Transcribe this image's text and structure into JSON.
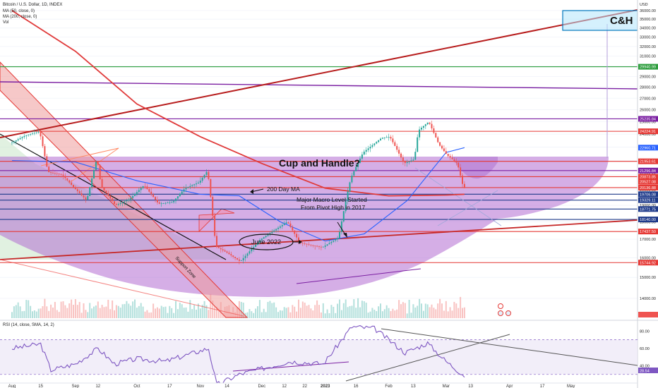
{
  "header": {
    "symbol": "Bitcoin / U.S. Dollar, 1D, INDEX",
    "ma50": "MA (50, close, 0)",
    "ma200": "MA (200, close, 0)",
    "vol": "Vol"
  },
  "rsi_header": "RSI (14, close, SMA, 14, 2)",
  "currency": "USD",
  "annotations": {
    "cup": "Cup and Handle?",
    "ma200": "200 Day MA",
    "macro_1": "Major Macro Level Started",
    "macro_2": "From Pivot High in 2017",
    "june": "June 2022",
    "support": "Support Zone",
    "ch": "C&H"
  },
  "colors": {
    "up": "#26a69a",
    "down": "#ef5350",
    "cup_fill": "#b36bd1",
    "ma200": "#e03a3a",
    "ma50": "#2962ff",
    "purple_line": "#7b1fa2",
    "green_line": "#2e9e3e",
    "blue_line": "#1e3a8a",
    "red_line": "#e53935"
  },
  "chart_data": {
    "type": "candlestick",
    "title": "Bitcoin / U.S. Dollar, 1D, INDEX",
    "ylabel": "USD",
    "y_scale": "log",
    "ylim": [
      13000,
      36000
    ],
    "y_ticks": [
      14000,
      15000,
      16000,
      17000,
      18000,
      19000,
      20000,
      21000,
      22000,
      23000,
      24000,
      25000,
      26000,
      27000,
      28000,
      29000,
      30000,
      31000,
      32000,
      33000,
      34000,
      35000,
      36000
    ],
    "x_ticks": [
      "Aug",
      "15",
      "Sep",
      "12",
      "Oct",
      "17",
      "Nov",
      "14",
      "Dec",
      "12",
      "22",
      "2023",
      "16",
      "Feb",
      "13",
      "Mar",
      "13",
      "Apr",
      "17",
      "May"
    ],
    "price_badges": [
      {
        "value": "29940.99",
        "color": "#2e9e3e"
      },
      {
        "value": "25235.84",
        "color": "#7b1fa2"
      },
      {
        "value": "24224.91",
        "color": "#e53935"
      },
      {
        "value": "22960.71",
        "color": "#2962ff"
      },
      {
        "value": "21953.61",
        "color": "#e53935"
      },
      {
        "value": "21296.84",
        "color": "#7b1fa2"
      },
      {
        "value": "20873.85",
        "color": "#e53935"
      },
      {
        "value": "20527.08",
        "color": "#e53935"
      },
      {
        "value": "20136.88",
        "color": "#e53935"
      },
      {
        "value": "19706.08",
        "color": "#1e3a8a"
      },
      {
        "value": "19329.11",
        "color": "#1e3a8a"
      },
      {
        "value": "18771.75",
        "color": "#1e3a8a"
      },
      {
        "value": "18140.00",
        "color": "#1e3a8a"
      },
      {
        "value": "17437.50",
        "color": "#e53935"
      },
      {
        "value": "15744.92",
        "color": "#e53935"
      }
    ],
    "horizontal_levels": [
      {
        "price": 29940.99,
        "color": "#2e9e3e"
      },
      {
        "price": 25235.84,
        "color": "#7b1fa2"
      },
      {
        "price": 24224.91,
        "color": "#e53935"
      },
      {
        "price": 21953.61,
        "color": "#e53935"
      },
      {
        "price": 21296.84,
        "color": "#7b1fa2"
      },
      {
        "price": 20873.85,
        "color": "#e53935"
      },
      {
        "price": 20136.88,
        "color": "#e53935"
      },
      {
        "price": 19706.08,
        "color": "#1e3a8a"
      },
      {
        "price": 19329.11,
        "color": "#1e3a8a"
      },
      {
        "price": 18771.75,
        "color": "#1e3a8a"
      },
      {
        "price": 18140.0,
        "color": "#1e3a8a"
      },
      {
        "price": 17437.5,
        "color": "#e53935"
      },
      {
        "price": 15744.92,
        "color": "#e53935"
      }
    ],
    "price_path": [
      [
        "Aug 1",
        23300
      ],
      [
        "Aug 8",
        23900
      ],
      [
        "Aug 15",
        24200
      ],
      [
        "Aug 19",
        21200
      ],
      [
        "Aug 26",
        21000
      ],
      [
        "Sep 1",
        20100
      ],
      [
        "Sep 7",
        19300
      ],
      [
        "Sep 12",
        22200
      ],
      [
        "Sep 14",
        20200
      ],
      [
        "Sep 21",
        19000
      ],
      [
        "Sep 28",
        19400
      ],
      [
        "Oct 5",
        20300
      ],
      [
        "Oct 12",
        19100
      ],
      [
        "Oct 19",
        19200
      ],
      [
        "Oct 25",
        20100
      ],
      [
        "Nov 1",
        20500
      ],
      [
        "Nov 5",
        21300
      ],
      [
        "Nov 9",
        16600
      ],
      [
        "Nov 14",
        16300
      ],
      [
        "Nov 21",
        15800
      ],
      [
        "Dec 1",
        17000
      ],
      [
        "Dec 14",
        18000
      ],
      [
        "Dec 20",
        16800
      ],
      [
        "Dec 31",
        16550
      ],
      [
        "Jan 8",
        17100
      ],
      [
        "Jan 14",
        20800
      ],
      [
        "Jan 20",
        22600
      ],
      [
        "Jan 29",
        23700
      ],
      [
        "Feb 2",
        23800
      ],
      [
        "Feb 9",
        21800
      ],
      [
        "Feb 14",
        22100
      ],
      [
        "Feb 16",
        24300
      ],
      [
        "Feb 21",
        25000
      ],
      [
        "Feb 26",
        23200
      ],
      [
        "Mar 2",
        22400
      ],
      [
        "Mar 7",
        21800
      ],
      [
        "Mar 10",
        20100
      ]
    ],
    "ma200_path": [
      [
        "Aug 1",
        36000
      ],
      [
        "Sep 1",
        31500
      ],
      [
        "Oct 1",
        26500
      ],
      [
        "Nov 1",
        23800
      ],
      [
        "Dec 1",
        21800
      ],
      [
        "Jan 1",
        20100
      ],
      [
        "Feb 1",
        19600
      ],
      [
        "Mar 1",
        19650
      ],
      [
        "Mar 10",
        19700
      ]
    ],
    "ma50_path": [
      [
        "Aug 1",
        22000
      ],
      [
        "Sep 1",
        21900
      ],
      [
        "Oct 1",
        20600
      ],
      [
        "Nov 1",
        19700
      ],
      [
        "Nov 20",
        19600
      ],
      [
        "Dec 10",
        18000
      ],
      [
        "Jan 1",
        16900
      ],
      [
        "Jan 20",
        17300
      ],
      [
        "Feb 10",
        19300
      ],
      [
        "Mar 1",
        22600
      ],
      [
        "Mar 10",
        22960
      ]
    ],
    "rsi": {
      "name": "RSI (14, close, SMA, 14, 2)",
      "last": "28.54",
      "levels": [
        70,
        30
      ],
      "y_ticks": [
        40.0,
        60.0,
        80.0
      ],
      "path": [
        [
          "Aug 1",
          60
        ],
        [
          "Aug 15",
          65
        ],
        [
          "Aug 20",
          35
        ],
        [
          "Sep 1",
          42
        ],
        [
          "Sep 12",
          60
        ],
        [
          "Sep 20",
          42
        ],
        [
          "Oct 1",
          48
        ],
        [
          "Oct 15",
          45
        ],
        [
          "Nov 5",
          60
        ],
        [
          "Nov 9",
          18
        ],
        [
          "Nov 20",
          30
        ],
        [
          "Dec 15",
          45
        ],
        [
          "Dec 31",
          42
        ],
        [
          "Jan 14",
          85
        ],
        [
          "Jan 25",
          83
        ],
        [
          "Feb 9",
          55
        ],
        [
          "Feb 20",
          66
        ],
        [
          "Mar 1",
          45
        ],
        [
          "Mar 10",
          28.54
        ]
      ]
    }
  }
}
